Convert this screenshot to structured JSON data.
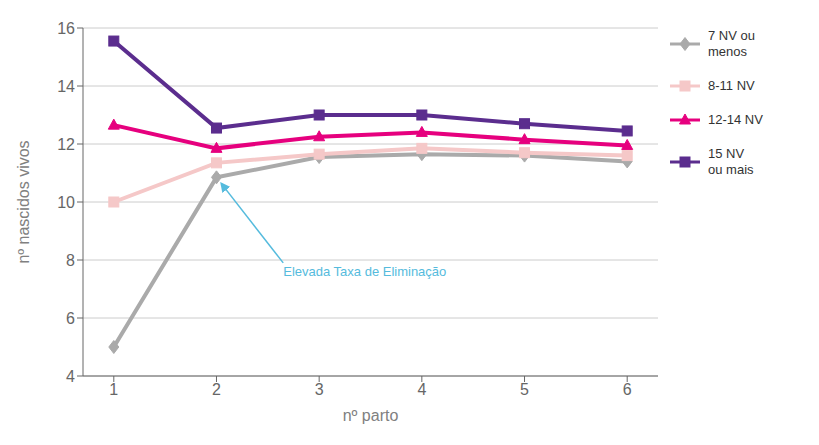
{
  "chart_data": {
    "type": "line",
    "x": [
      1,
      2,
      3,
      4,
      5,
      6
    ],
    "series": [
      {
        "name": "7 NV ou\nmenos",
        "color": "#aaaaaa",
        "marker": "diamond",
        "values": [
          5.0,
          10.85,
          11.55,
          11.65,
          11.6,
          11.4
        ]
      },
      {
        "name": "8-11 NV",
        "color": "#f5c8c8",
        "marker": "square",
        "values": [
          10.0,
          11.35,
          11.65,
          11.85,
          11.7,
          11.6
        ]
      },
      {
        "name": "12-14 NV",
        "color": "#e6007e",
        "marker": "triangle",
        "values": [
          12.65,
          11.85,
          12.25,
          12.4,
          12.15,
          11.95
        ]
      },
      {
        "name": "15 NV\nou mais",
        "color": "#5b2d8e",
        "marker": "square",
        "values": [
          15.55,
          12.55,
          13.0,
          13.0,
          12.7,
          12.45
        ]
      }
    ],
    "x_label": "nº parto",
    "y_label": "nº nascidos vivos",
    "xlim": [
      0.7,
      6.3
    ],
    "ylim": [
      4,
      16
    ],
    "xticks": [
      1,
      2,
      3,
      4,
      5,
      6
    ],
    "yticks": [
      4,
      6,
      8,
      10,
      12,
      14,
      16
    ],
    "grid": true,
    "legend": "right",
    "annotations": [
      {
        "text": "Elevada Taxa de Eliminação",
        "x": 2.0,
        "y": 10.85,
        "text_x": 2.65,
        "text_y": 7.9,
        "color": "#55bbdd"
      }
    ]
  }
}
